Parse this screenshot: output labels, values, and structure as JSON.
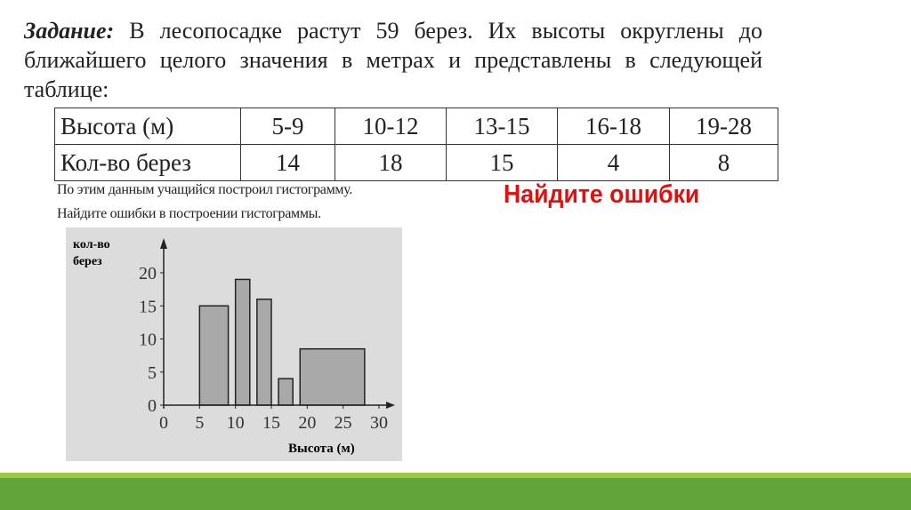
{
  "task": {
    "label": "Задание:",
    "text": " В лесопосадке растут 59 берез. Их высоты округлены до ближайшего целого значения в метрах и представлены в следующей таблице:"
  },
  "table": {
    "header": [
      "Высота (м)",
      "5-9",
      "10-12",
      "13-15",
      "16-18",
      "19-28"
    ],
    "row": [
      "Кол-во берез",
      "14",
      "18",
      "15",
      "4",
      "8"
    ]
  },
  "notes": {
    "line1": "По этим данным учащийся построил гистограмму.",
    "line2": "Найдите ошибки в построении гистограммы."
  },
  "highlight": "Найдите ошибки",
  "colors": {
    "highlight": "#e01010",
    "band_light": "#9bc93f",
    "band_dark": "#62a33a"
  },
  "chart_data": {
    "type": "bar",
    "ylabel": "кол-во берез",
    "ylabel_lines": [
      "кол-во",
      "берез"
    ],
    "xlabel": "Высота (м)",
    "xlim": [
      0,
      30
    ],
    "ylim": [
      0,
      20
    ],
    "xticks": [
      "0",
      "5",
      "10",
      "15",
      "20",
      "25",
      "30"
    ],
    "yticks": [
      "0",
      "5",
      "10",
      "15",
      "20"
    ],
    "bars": [
      {
        "x0": 5,
        "x1": 9,
        "value": 15
      },
      {
        "x0": 10,
        "x1": 12,
        "value": 19
      },
      {
        "x0": 13,
        "x1": 15,
        "value": 16
      },
      {
        "x0": 16,
        "x1": 18,
        "value": 4
      },
      {
        "x0": 19,
        "x1": 28,
        "value": 8.5
      }
    ],
    "grid": false
  }
}
